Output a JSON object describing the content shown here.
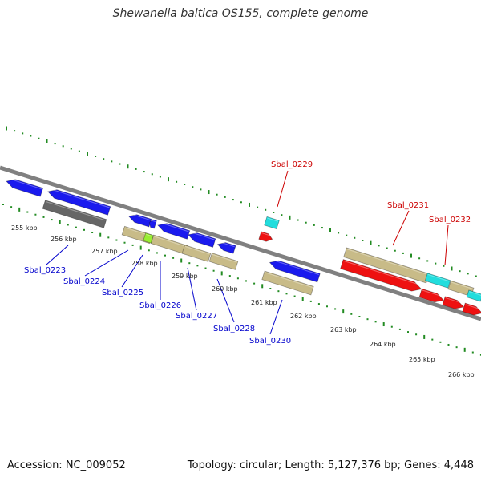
{
  "title": "Shewanella baltica OS155, complete genome",
  "footer": {
    "accession": "Accession: NC_009052",
    "summary": "Topology: circular; Length: 5,127,376 bp; Genes: 4,448"
  },
  "colors": {
    "backbone": "#808080",
    "tick": "#228b22",
    "blue_feature": "#1a1aee",
    "red_feature": "#ee1111",
    "cyan_feature": "#22dddd",
    "tan_feature": "#c8bb88",
    "gray_feature": "#666666",
    "green_feature": "#99ee33",
    "label_blue": "#0000cc",
    "label_red": "#cc0000",
    "leader_blue": "#0000cc",
    "leader_red": "#cc0000"
  },
  "scale_labels": [
    "255 kbp",
    "256 kbp",
    "257 kbp",
    "258 kbp",
    "259 kbp",
    "260 kbp",
    "261 kbp",
    "262 kbp",
    "263 kbp",
    "264 kbp",
    "265 kbp",
    "266 kbp"
  ],
  "gene_labels": {
    "forward": [
      "Sbal_0229",
      "Sbal_0231",
      "Sbal_0232"
    ],
    "reverse": [
      "Sbal_0223",
      "Sbal_0224",
      "Sbal_0225",
      "Sbal_0226",
      "Sbal_0227",
      "Sbal_0228",
      "Sbal_0230"
    ]
  }
}
